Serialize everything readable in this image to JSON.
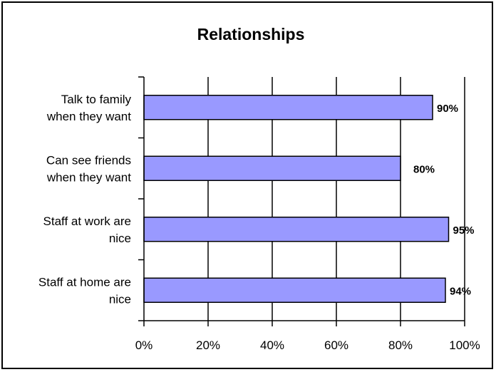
{
  "chart_data": {
    "type": "bar",
    "orientation": "horizontal",
    "title": "Relationships",
    "categories": [
      [
        "Talk to family",
        "when they want"
      ],
      [
        "Can see friends",
        "when they want"
      ],
      [
        "Staff at work are",
        "nice"
      ],
      [
        "Staff at home are",
        "nice"
      ]
    ],
    "values": [
      90,
      80,
      95,
      94
    ],
    "data_labels": [
      "90%",
      "80%",
      "95%",
      "94%"
    ],
    "xticks": [
      "0%",
      "20%",
      "40%",
      "60%",
      "80%",
      "100%"
    ],
    "xlim": [
      0,
      100
    ],
    "grid": "vertical",
    "legend": "none",
    "bar_color": "#9999ff",
    "bar_edge_color": "#000000"
  }
}
